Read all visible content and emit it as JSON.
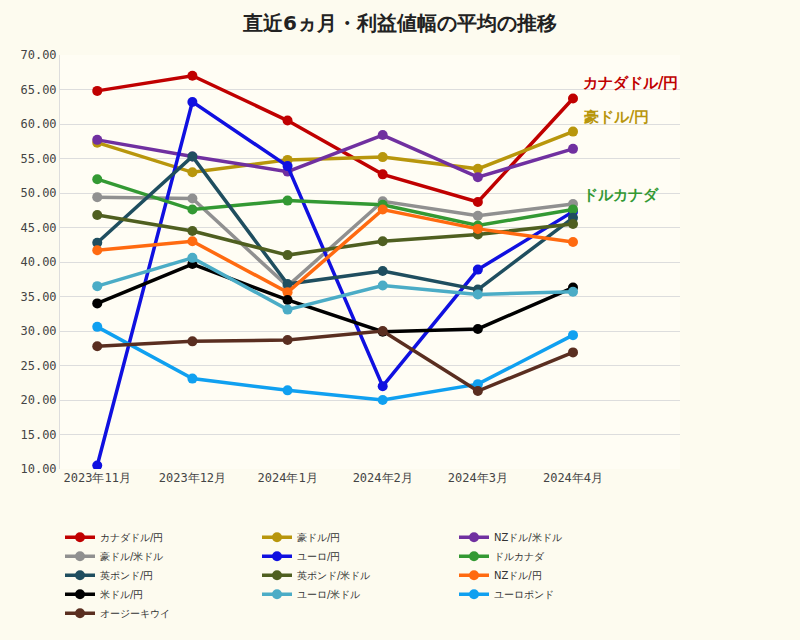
{
  "chart_data": {
    "type": "line",
    "title": "直近6ヵ月・利益値幅の平均の推移",
    "categories": [
      "2023年11月",
      "2023年12月",
      "2024年1月",
      "2024年2月",
      "2024年3月",
      "2024年4月"
    ],
    "series": [
      {
        "name": "カナダドル/円",
        "color": "#c00000",
        "values": [
          64.8,
          67.0,
          60.5,
          52.7,
          48.7,
          63.7
        ]
      },
      {
        "name": "豪ドル/円",
        "color": "#b8960c",
        "values": [
          57.3,
          53.0,
          54.8,
          55.2,
          53.5,
          58.9
        ]
      },
      {
        "name": "NZドル/米ドル",
        "color": "#7030a0",
        "values": [
          57.7,
          55.3,
          53.1,
          58.4,
          52.3,
          56.4
        ]
      },
      {
        "name": "豪ドル/米ドル",
        "color": "#909090",
        "values": [
          49.4,
          49.2,
          36.5,
          48.8,
          46.7,
          48.4
        ]
      },
      {
        "name": "ユーロ/円",
        "color": "#1010e0",
        "values": [
          10.5,
          63.2,
          53.9,
          22.0,
          38.9,
          47.3
        ]
      },
      {
        "name": "ドルカナダ",
        "color": "#339933",
        "values": [
          52.0,
          47.6,
          48.9,
          48.3,
          45.3,
          47.6
        ]
      },
      {
        "name": "英ポンド/円",
        "color": "#1f4e5f",
        "values": [
          42.8,
          55.3,
          36.8,
          38.7,
          36.0,
          46.4
        ]
      },
      {
        "name": "英ポンド/米ドル",
        "color": "#4f5f20",
        "values": [
          46.8,
          44.5,
          41.0,
          43.0,
          44.0,
          45.5
        ]
      },
      {
        "name": "NZドル/円",
        "color": "#ff6a10",
        "values": [
          41.7,
          43.0,
          35.6,
          47.6,
          44.8,
          42.9
        ]
      },
      {
        "name": "米ドル/円",
        "color": "#000000",
        "values": [
          34.0,
          39.7,
          34.5,
          29.9,
          30.3,
          36.3
        ]
      },
      {
        "name": "ユーロ/米ドル",
        "color": "#4bacc6",
        "values": [
          36.5,
          40.6,
          33.1,
          36.6,
          35.3,
          35.7
        ]
      },
      {
        "name": "ユーロポンド",
        "color": "#10a0f0",
        "values": [
          30.6,
          23.1,
          21.4,
          20.0,
          22.3,
          29.4
        ]
      },
      {
        "name": "オージーキウイ",
        "color": "#5a2e20",
        "values": [
          27.8,
          28.5,
          28.7,
          30.0,
          21.3,
          26.9
        ]
      }
    ],
    "annotations": [
      {
        "text": "カナダドル/円",
        "series": "カナダドル/円"
      },
      {
        "text": "豪ドル/円",
        "series": "豪ドル/円"
      },
      {
        "text": "ドルカナダ",
        "series": "ドルカナダ"
      }
    ],
    "ylim": [
      10,
      70
    ],
    "yticks": [
      {
        "value": 10,
        "label": "10.00"
      },
      {
        "value": 15,
        "label": "15.00"
      },
      {
        "value": 20,
        "label": "20.00"
      },
      {
        "value": 25,
        "label": "25.00"
      },
      {
        "value": 30,
        "label": "30.00"
      },
      {
        "value": 35,
        "label": "35.00"
      },
      {
        "value": 40,
        "label": "40.00"
      },
      {
        "value": 45,
        "label": "45.00"
      },
      {
        "value": 50,
        "label": "50.00"
      },
      {
        "value": 55,
        "label": "55.00"
      },
      {
        "value": 60,
        "label": "60.00"
      },
      {
        "value": 65,
        "label": "65.00"
      },
      {
        "value": 70,
        "label": "70.00"
      }
    ],
    "grid": true,
    "legend": "bottom",
    "marker": "circle",
    "line_style": "solid"
  }
}
